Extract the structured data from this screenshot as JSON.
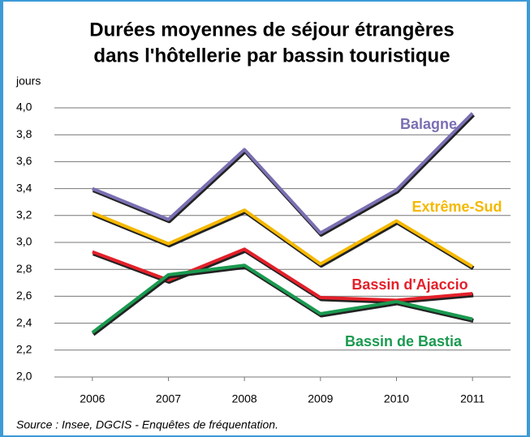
{
  "chart_data": {
    "type": "line",
    "title": "Durées moyennes de séjour étrangères",
    "subtitle": "dans l'hôtellerie par bassin touristique",
    "ylabel": "jours",
    "source": "Source : Insee, DGCIS - Enquêtes de fréquentation.",
    "categories": [
      "2006",
      "2007",
      "2008",
      "2009",
      "2010",
      "2011"
    ],
    "series": [
      {
        "name": "Balagne",
        "color": "#7b6fb3",
        "values": [
          3.4,
          3.17,
          3.69,
          3.07,
          3.39,
          3.96
        ]
      },
      {
        "name": "Extrême-Sud",
        "color": "#f5b800",
        "values": [
          3.22,
          2.99,
          3.24,
          2.84,
          3.16,
          2.82
        ]
      },
      {
        "name": "Bassin d'Ajaccio",
        "color": "#e3202a",
        "values": [
          2.93,
          2.72,
          2.95,
          2.59,
          2.57,
          2.62
        ]
      },
      {
        "name": "Bassin de Bastia",
        "color": "#1a9a50",
        "values": [
          2.33,
          2.76,
          2.83,
          2.47,
          2.56,
          2.43
        ]
      }
    ],
    "ylim": [
      2.0,
      4.0
    ],
    "yticks": [
      {
        "value": 2.0,
        "label": "2,0"
      },
      {
        "value": 2.2,
        "label": "2,2"
      },
      {
        "value": 2.4,
        "label": "2,4"
      },
      {
        "value": 2.6,
        "label": "2,6"
      },
      {
        "value": 2.8,
        "label": "2,8"
      },
      {
        "value": 3.0,
        "label": "3,0"
      },
      {
        "value": 3.2,
        "label": "3,2"
      },
      {
        "value": 3.4,
        "label": "3,4"
      },
      {
        "value": 3.6,
        "label": "3,6"
      },
      {
        "value": 3.8,
        "label": "3,8"
      },
      {
        "value": 4.0,
        "label": "4,0"
      }
    ],
    "grid": true
  }
}
